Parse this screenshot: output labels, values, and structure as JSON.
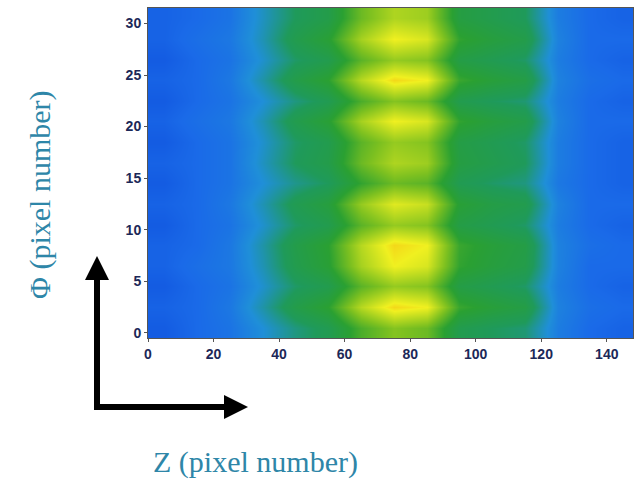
{
  "chart_data": {
    "type": "heatmap",
    "x_label": "Z (pixel number)",
    "y_label": "Φ (pixel number)",
    "x": [
      5,
      15,
      25,
      35,
      45,
      55,
      65,
      75,
      85,
      95,
      105,
      115,
      125,
      135,
      145
    ],
    "y": [
      0.5,
      2.5,
      4.5,
      6.5,
      8.5,
      10.5,
      12.5,
      14.5,
      16.5,
      18.5,
      20.5,
      22.5,
      24.5,
      26.5,
      28.5,
      30.5
    ],
    "z": [
      [
        1.8,
        2.0,
        2.2,
        2.8,
        3.5,
        4.0,
        5.2,
        5.9,
        5.6,
        4.1,
        3.8,
        3.6,
        2.4,
        2.0,
        1.9
      ],
      [
        1.9,
        2.0,
        2.3,
        3.2,
        4.2,
        4.8,
        6.5,
        7.5,
        7.2,
        5.0,
        4.6,
        4.3,
        2.5,
        2.1,
        2.0
      ],
      [
        1.8,
        2.0,
        2.2,
        2.9,
        3.7,
        4.1,
        5.4,
        6.1,
        5.9,
        4.3,
        4.0,
        3.7,
        2.4,
        2.0,
        1.9
      ],
      [
        1.9,
        2.1,
        2.3,
        3.1,
        4.1,
        4.7,
        6.3,
        7.2,
        6.9,
        4.9,
        4.5,
        4.2,
        2.5,
        2.0,
        2.0
      ],
      [
        1.9,
        2.0,
        2.3,
        3.2,
        4.2,
        4.8,
        6.5,
        7.5,
        7.2,
        5.0,
        4.6,
        4.3,
        2.5,
        2.1,
        2.0
      ],
      [
        1.8,
        2.0,
        2.2,
        2.9,
        3.7,
        4.1,
        5.4,
        6.1,
        5.9,
        4.3,
        4.0,
        3.7,
        2.4,
        2.0,
        1.9
      ],
      [
        1.9,
        2.0,
        2.3,
        3.1,
        4.0,
        4.5,
        6.1,
        7.0,
        6.7,
        4.7,
        4.3,
        4.1,
        2.5,
        2.0,
        2.0
      ],
      [
        1.8,
        2.0,
        2.2,
        2.8,
        3.4,
        3.8,
        4.9,
        5.6,
        5.4,
        4.0,
        3.7,
        3.5,
        2.3,
        2.0,
        1.9
      ],
      [
        1.9,
        2.0,
        2.2,
        3.0,
        3.8,
        4.2,
        5.6,
        6.4,
        6.2,
        4.4,
        4.1,
        3.8,
        2.4,
        2.0,
        1.9
      ],
      [
        1.8,
        2.0,
        2.2,
        2.9,
        3.7,
        4.1,
        5.4,
        6.1,
        5.9,
        4.3,
        4.0,
        3.7,
        2.4,
        2.0,
        1.9
      ],
      [
        1.9,
        2.1,
        2.3,
        3.1,
        4.1,
        4.7,
        6.3,
        7.2,
        6.9,
        4.9,
        4.5,
        4.2,
        2.5,
        2.0,
        2.0
      ],
      [
        1.8,
        2.0,
        2.2,
        2.8,
        3.5,
        4.0,
        5.2,
        5.9,
        5.6,
        4.1,
        3.8,
        3.6,
        2.4,
        2.0,
        1.9
      ],
      [
        1.9,
        2.0,
        2.3,
        3.2,
        4.2,
        4.8,
        6.5,
        7.5,
        7.2,
        5.0,
        4.6,
        4.3,
        2.5,
        2.1,
        2.0
      ],
      [
        1.8,
        2.0,
        2.2,
        2.9,
        3.7,
        4.1,
        5.4,
        6.1,
        5.9,
        4.3,
        4.0,
        3.7,
        2.4,
        2.0,
        1.9
      ],
      [
        1.9,
        2.1,
        2.3,
        3.1,
        4.1,
        4.7,
        6.3,
        7.2,
        6.9,
        4.9,
        4.5,
        4.2,
        2.5,
        2.0,
        2.0
      ],
      [
        1.9,
        2.0,
        2.2,
        3.0,
        3.8,
        4.2,
        5.6,
        6.4,
        6.2,
        4.4,
        4.1,
        3.8,
        2.4,
        2.0,
        1.9
      ]
    ],
    "zlim": [
      0,
      10
    ],
    "xlim": [
      0,
      148
    ],
    "ylim": [
      -0.5,
      31.5
    ],
    "xticks": [
      0,
      20,
      40,
      60,
      80,
      100,
      120,
      140
    ],
    "yticks": [
      0,
      5,
      10,
      15,
      20,
      25,
      30
    ],
    "grid": false
  }
}
